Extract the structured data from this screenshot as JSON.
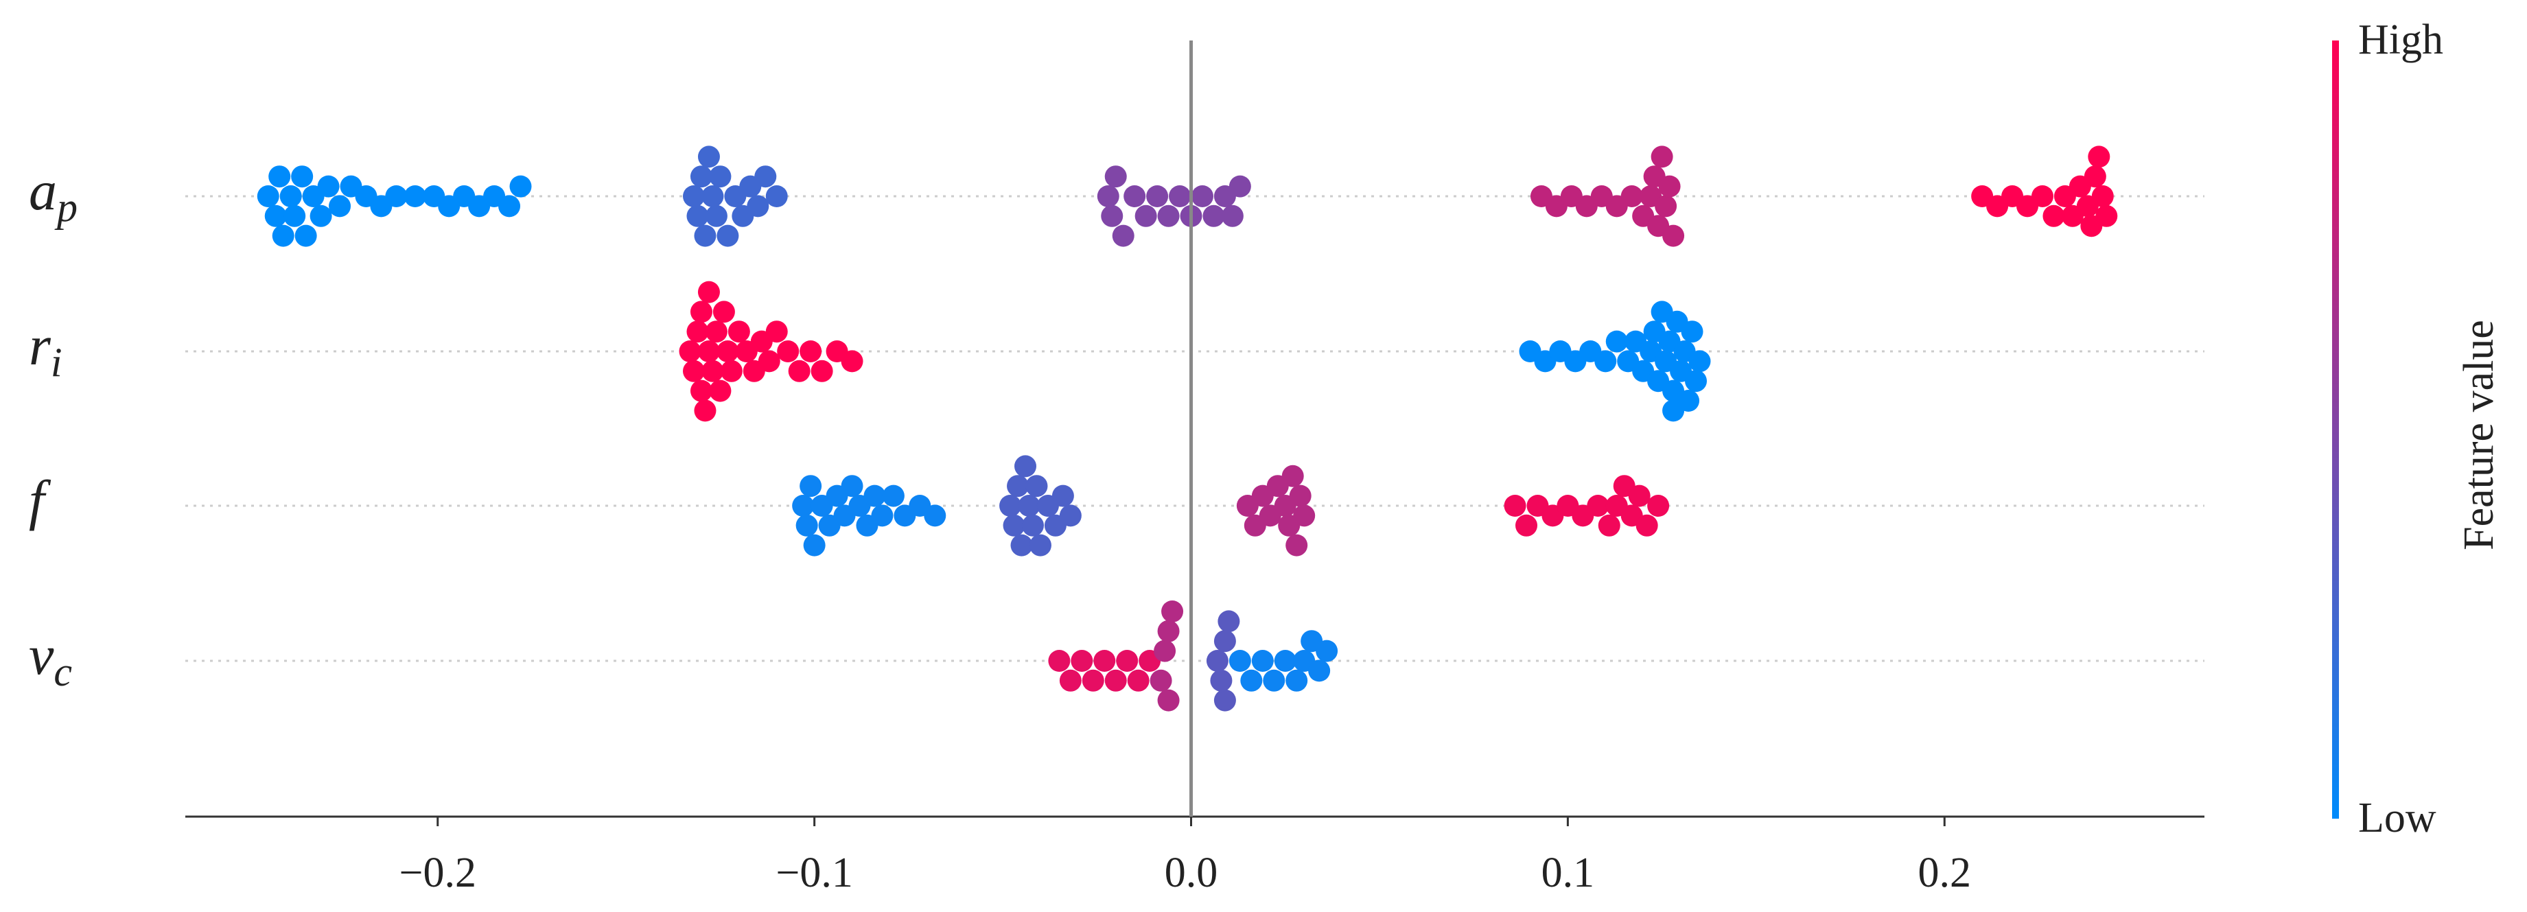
{
  "chart_data": {
    "type": "beeswarm",
    "xlim": [
      -0.267,
      0.269
    ],
    "xticks": [
      {
        "value": -0.2,
        "label": "−0.2"
      },
      {
        "value": -0.1,
        "label": "−0.1"
      },
      {
        "value": 0,
        "label": "0.0"
      },
      0.1,
      0.2
    ],
    "colormap": [
      "#008bfb",
      "#ff0052"
    ],
    "colorbar": {
      "label": "Feature value",
      "high": "High",
      "low": "Low"
    },
    "series": [
      {
        "name": "a",
        "subscript": "p",
        "x": [
          -0.245,
          -0.243,
          -0.242,
          -0.241,
          -0.239,
          -0.238,
          -0.236,
          -0.235,
          -0.233,
          -0.231,
          -0.229,
          -0.226,
          -0.223,
          -0.219,
          -0.215,
          -0.211,
          -0.206,
          -0.201,
          -0.197,
          -0.193,
          -0.189,
          -0.185,
          -0.181,
          -0.178,
          -0.132,
          -0.131,
          -0.13,
          -0.129,
          -0.128,
          -0.127,
          -0.126,
          -0.125,
          -0.123,
          -0.121,
          -0.119,
          -0.117,
          -0.115,
          -0.113,
          -0.11,
          -0.022,
          -0.021,
          -0.02,
          -0.018,
          -0.015,
          -0.012,
          -0.009,
          -0.006,
          -0.003,
          0.0,
          0.003,
          0.006,
          0.009,
          0.011,
          0.013,
          0.093,
          0.097,
          0.101,
          0.105,
          0.109,
          0.113,
          0.117,
          0.12,
          0.122,
          0.123,
          0.124,
          0.125,
          0.126,
          0.127,
          0.128,
          0.21,
          0.214,
          0.218,
          0.222,
          0.226,
          0.229,
          0.232,
          0.234,
          0.236,
          0.238,
          0.239,
          0.24,
          0.241,
          0.242,
          0.243
        ],
        "feature_values": [
          0,
          0,
          0,
          0,
          0,
          0,
          0,
          0,
          0,
          0,
          0,
          0,
          0,
          0,
          0,
          0,
          0,
          0,
          0,
          0,
          0,
          0,
          0,
          0,
          0.25,
          0.25,
          0.25,
          0.25,
          0.25,
          0.25,
          0.25,
          0.25,
          0.25,
          0.25,
          0.25,
          0.25,
          0.25,
          0.25,
          0.25,
          0.5,
          0.5,
          0.5,
          0.5,
          0.5,
          0.5,
          0.5,
          0.5,
          0.5,
          0.5,
          0.5,
          0.5,
          0.5,
          0.5,
          0.5,
          0.75,
          0.75,
          0.75,
          0.75,
          0.75,
          0.75,
          0.75,
          0.75,
          0.75,
          0.75,
          0.75,
          0.75,
          0.75,
          0.75,
          0.75,
          1,
          1,
          1,
          1,
          1,
          1,
          1,
          1,
          1,
          1,
          1,
          1,
          1,
          1,
          1
        ]
      },
      {
        "name": "r",
        "subscript": "i",
        "x": [
          -0.133,
          -0.132,
          -0.131,
          -0.13,
          -0.13,
          -0.129,
          -0.128,
          -0.128,
          -0.127,
          -0.126,
          -0.125,
          -0.124,
          -0.123,
          -0.122,
          -0.12,
          -0.118,
          -0.116,
          -0.114,
          -0.112,
          -0.11,
          -0.107,
          -0.104,
          -0.101,
          -0.098,
          -0.094,
          -0.09,
          0.09,
          0.094,
          0.098,
          0.102,
          0.106,
          0.11,
          0.113,
          0.116,
          0.118,
          0.12,
          0.122,
          0.123,
          0.124,
          0.125,
          0.126,
          0.127,
          0.128,
          0.128,
          0.129,
          0.13,
          0.131,
          0.132,
          0.133,
          0.134,
          0.135
        ],
        "feature_values": [
          1,
          1,
          1,
          1,
          1,
          1,
          1,
          1,
          1,
          1,
          1,
          1,
          1,
          1,
          1,
          1,
          1,
          1,
          1,
          1,
          1,
          1,
          1,
          1,
          1,
          1,
          0,
          0,
          0,
          0,
          0,
          0,
          0,
          0,
          0,
          0,
          0,
          0,
          0,
          0,
          0,
          0,
          0,
          0,
          0,
          0,
          0,
          0,
          0,
          0,
          0
        ]
      },
      {
        "name": "f",
        "subscript": "",
        "x": [
          -0.103,
          -0.102,
          -0.101,
          -0.1,
          -0.098,
          -0.096,
          -0.094,
          -0.092,
          -0.09,
          -0.088,
          -0.086,
          -0.084,
          -0.082,
          -0.079,
          -0.076,
          -0.072,
          -0.068,
          -0.048,
          -0.047,
          -0.046,
          -0.045,
          -0.044,
          -0.043,
          -0.042,
          -0.041,
          -0.04,
          -0.038,
          -0.036,
          -0.034,
          -0.032,
          0.015,
          0.017,
          0.019,
          0.021,
          0.023,
          0.025,
          0.026,
          0.027,
          0.028,
          0.029,
          0.03,
          0.086,
          0.089,
          0.092,
          0.096,
          0.1,
          0.104,
          0.108,
          0.111,
          0.113,
          0.115,
          0.117,
          0.119,
          0.121,
          0.124
        ],
        "feature_values": [
          0.05,
          0.05,
          0.05,
          0.05,
          0.05,
          0.05,
          0.05,
          0.05,
          0.05,
          0.05,
          0.05,
          0.05,
          0.05,
          0.05,
          0.05,
          0.05,
          0.05,
          0.3,
          0.3,
          0.3,
          0.3,
          0.3,
          0.3,
          0.3,
          0.3,
          0.3,
          0.3,
          0.3,
          0.3,
          0.3,
          0.7,
          0.7,
          0.7,
          0.7,
          0.7,
          0.7,
          0.7,
          0.7,
          0.7,
          0.7,
          0.7,
          0.95,
          0.95,
          0.95,
          0.95,
          0.95,
          0.95,
          0.95,
          0.95,
          0.95,
          0.95,
          0.95,
          0.95,
          0.95,
          0.95
        ]
      },
      {
        "name": "v",
        "subscript": "c",
        "x": [
          -0.035,
          -0.032,
          -0.029,
          -0.026,
          -0.023,
          -0.02,
          -0.017,
          -0.014,
          -0.011,
          -0.008,
          -0.007,
          -0.006,
          -0.006,
          -0.005,
          0.007,
          0.008,
          0.009,
          0.009,
          0.01,
          0.013,
          0.016,
          0.019,
          0.022,
          0.025,
          0.028,
          0.03,
          0.032,
          0.034,
          0.036
        ],
        "feature_values": [
          0.9,
          0.9,
          0.9,
          0.9,
          0.9,
          0.9,
          0.9,
          0.9,
          0.9,
          0.7,
          0.7,
          0.7,
          0.7,
          0.7,
          0.35,
          0.35,
          0.35,
          0.35,
          0.35,
          0.05,
          0.05,
          0.05,
          0.05,
          0.05,
          0.05,
          0.05,
          0.05,
          0.05,
          0.05
        ]
      }
    ]
  }
}
